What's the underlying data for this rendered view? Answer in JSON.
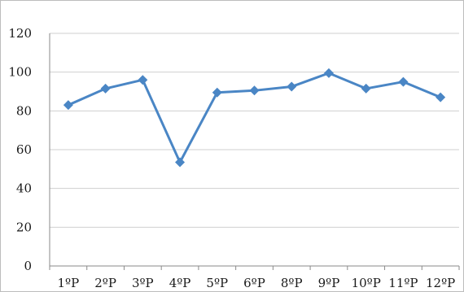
{
  "chart_data": {
    "type": "line",
    "title": "",
    "xlabel": "",
    "ylabel": "",
    "categories": [
      "1ºP",
      "2ºP",
      "3ºP",
      "4ºP",
      "5ºP",
      "6ºP",
      "8ºP",
      "9ºP",
      "10ºP",
      "11ºP",
      "12ºP"
    ],
    "series": [
      {
        "values": [
          83,
          91.5,
          96,
          53.5,
          89.5,
          90.5,
          92.5,
          99.5,
          91.5,
          95,
          87
        ],
        "color": "#4a86c5"
      }
    ],
    "ylim": [
      0,
      120
    ],
    "yticks": [
      0,
      20,
      40,
      60,
      80,
      100,
      120
    ],
    "grid": "horizontal",
    "legend": "none",
    "marker": "diamond"
  }
}
